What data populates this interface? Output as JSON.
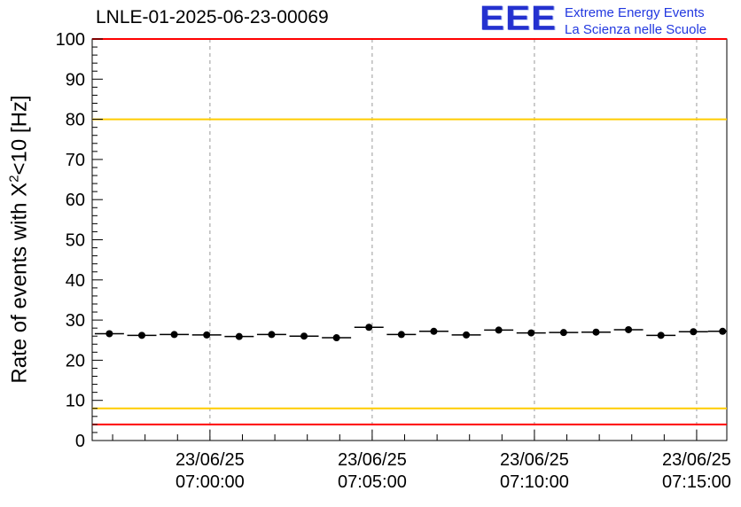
{
  "logo": {
    "letters": "EEE",
    "line1": "Extreme Energy Events",
    "line2": "La Scienza nelle Scuole",
    "color": "#2238e0"
  },
  "chart_data": {
    "type": "scatter",
    "title": "LNLE-01-2025-06-23-00069",
    "ylabel": "Rate of events with X^2<10 [Hz]",
    "ylabel_parts": [
      "Rate of events with X",
      "2",
      "<10 [Hz]"
    ],
    "ylim": [
      0,
      100
    ],
    "xlim_minutes": [
      -3.63,
      15.93
    ],
    "y_ticks": [
      0,
      10,
      20,
      30,
      40,
      50,
      60,
      70,
      80,
      90,
      100
    ],
    "y_minor_step": 2,
    "x_minor_step_minutes": 1,
    "grid": {
      "vertical_dashed": true,
      "grid_color": "#999999"
    },
    "frame_color": "#000000",
    "x_ticks": [
      {
        "minute": 0,
        "date": "23/06/25",
        "time": "07:00:00"
      },
      {
        "minute": 5,
        "date": "23/06/25",
        "time": "07:05:00"
      },
      {
        "minute": 10,
        "date": "23/06/25",
        "time": "07:10:00"
      },
      {
        "minute": 15,
        "date": "23/06/25",
        "time": "07:15:00"
      }
    ],
    "threshold_lines": [
      {
        "y": 100,
        "color": "#ff0000",
        "label": "alarm-high"
      },
      {
        "y": 80,
        "color": "#ffcc00",
        "label": "warn-high"
      },
      {
        "y": 8,
        "color": "#ffcc00",
        "label": "warn-low"
      },
      {
        "y": 4,
        "color": "#ff0000",
        "label": "alarm-low"
      }
    ],
    "marker": {
      "color": "#000000",
      "radius": 4
    },
    "bin_halfwidth_minutes": 0.45,
    "y_error": 0.7,
    "points": [
      {
        "x": -3.1,
        "y": 26.6
      },
      {
        "x": -2.1,
        "y": 26.2
      },
      {
        "x": -1.1,
        "y": 26.4
      },
      {
        "x": -0.1,
        "y": 26.3
      },
      {
        "x": 0.9,
        "y": 25.9
      },
      {
        "x": 1.9,
        "y": 26.4
      },
      {
        "x": 2.9,
        "y": 26.0
      },
      {
        "x": 3.9,
        "y": 25.6
      },
      {
        "x": 4.9,
        "y": 28.2
      },
      {
        "x": 5.9,
        "y": 26.4
      },
      {
        "x": 6.9,
        "y": 27.2
      },
      {
        "x": 7.9,
        "y": 26.3
      },
      {
        "x": 8.9,
        "y": 27.5
      },
      {
        "x": 9.9,
        "y": 26.8
      },
      {
        "x": 10.9,
        "y": 26.9
      },
      {
        "x": 11.9,
        "y": 27.0
      },
      {
        "x": 12.9,
        "y": 27.6
      },
      {
        "x": 13.9,
        "y": 26.2
      },
      {
        "x": 14.9,
        "y": 27.1
      },
      {
        "x": 15.8,
        "y": 27.2
      }
    ]
  }
}
